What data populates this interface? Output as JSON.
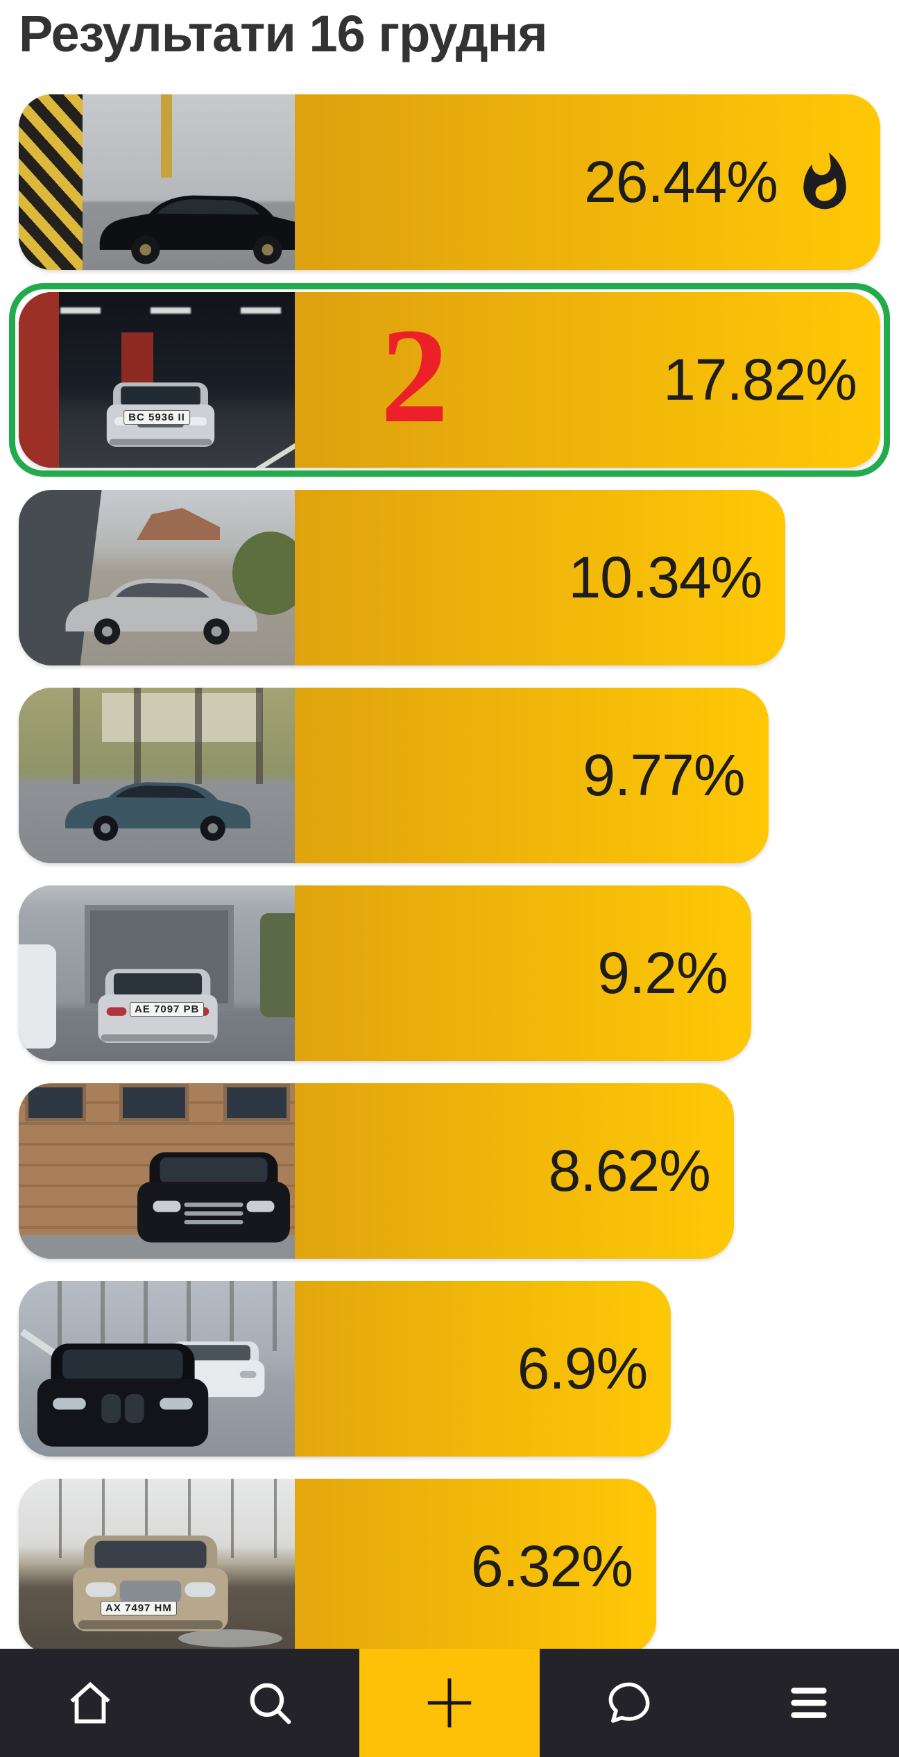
{
  "title": "Результати 16 грудня",
  "results": [
    {
      "percent": "26.44%",
      "hot": true,
      "selected": false,
      "bar_width_pct": 100,
      "photo": "black car in repair garage beside yellow-black striped pillar"
    },
    {
      "percent": "17.82%",
      "hot": false,
      "selected": true,
      "rank_overlay": "2",
      "plate": "BC 5936 II",
      "bar_width_pct": 100,
      "photo": "silver Volkswagen in underground parking with red pillars"
    },
    {
      "percent": "10.34%",
      "hot": false,
      "selected": false,
      "bar_width_pct": 89,
      "photo": "silver Chrysler PT Cruiser on gravel yard by dark fence"
    },
    {
      "percent": "9.77%",
      "hot": false,
      "selected": false,
      "bar_width_pct": 87,
      "photo": "dark teal station wagon on autumn tree-lined street"
    },
    {
      "percent": "9.2%",
      "hot": false,
      "selected": false,
      "plate": "AE 7097 PB",
      "bar_width_pct": 85,
      "photo": "silver Audi wagon rear view in front of garage"
    },
    {
      "percent": "8.62%",
      "hot": false,
      "selected": false,
      "bar_width_pct": 83,
      "photo": "black Chevrolet parked at wooden plank wall"
    },
    {
      "percent": "6.9%",
      "hot": false,
      "selected": false,
      "bar_width_pct": 75.7,
      "photo": "black BMW parked beside white car on street"
    },
    {
      "percent": "6.32%",
      "hot": false,
      "selected": false,
      "plate": "AX 7497 HM",
      "bar_width_pct": 74,
      "photo": "beige Honda Pilot SUV on muddy road with bare trees"
    }
  ],
  "nav": {
    "add_label": "+",
    "items": [
      "home",
      "search",
      "add",
      "chat",
      "menu"
    ],
    "active_item": "add"
  },
  "colors": {
    "bar_gradient_start": "#cd8e14",
    "bar_gradient_end": "#ffc806",
    "selected_border": "#22ab4c",
    "rank_number": "#ec2028",
    "percent_text": "#1d1d1d",
    "title_text": "#333333",
    "nav_background": "#232329",
    "nav_active_background": "#fec107",
    "nav_icon": "#ffffff"
  }
}
